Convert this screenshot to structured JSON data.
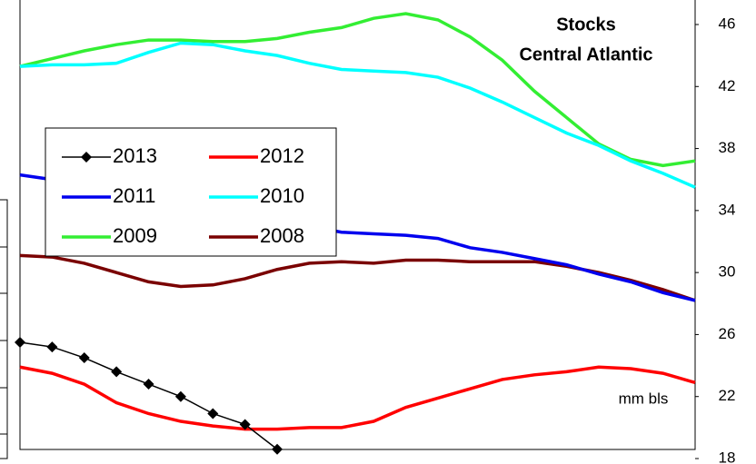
{
  "chart_data": {
    "type": "line",
    "title": "Stocks",
    "subtitle": "Central Atlantic",
    "annotation": "mm bls",
    "categories": [
      null,
      null,
      null,
      null,
      null,
      null,
      null,
      null,
      null,
      null,
      null,
      null,
      null,
      null,
      null,
      null,
      null,
      null,
      null,
      null,
      null,
      null
    ],
    "series": [
      {
        "name": "2013",
        "color": "#000000",
        "marker": "diamond",
        "values": [
          25.5,
          25.2,
          24.5,
          23.6,
          22.8,
          22.0,
          20.9,
          20.2,
          18.6,
          null,
          null,
          null,
          null,
          null,
          null,
          null,
          null,
          null,
          null,
          null,
          null,
          null
        ]
      },
      {
        "name": "2012",
        "color": "#ff0000",
        "values": [
          23.9,
          23.5,
          22.8,
          21.6,
          20.9,
          20.4,
          20.1,
          19.9,
          19.9,
          20.0,
          20.0,
          20.4,
          21.3,
          21.9,
          22.5,
          23.1,
          23.4,
          23.6,
          23.9,
          23.8,
          23.5,
          22.9
        ]
      },
      {
        "name": "2011",
        "color": "#0000ee",
        "values": [
          36.3,
          36.0,
          35.6,
          35.2,
          34.9,
          34.5,
          34.1,
          33.8,
          33.4,
          33.0,
          32.6,
          32.5,
          32.4,
          32.2,
          31.6,
          31.3,
          30.9,
          30.5,
          29.9,
          29.4,
          28.7,
          28.2
        ]
      },
      {
        "name": "2010",
        "color": "#00ffff",
        "values": [
          43.3,
          43.4,
          43.4,
          43.5,
          44.2,
          44.8,
          44.7,
          44.3,
          44.0,
          43.5,
          43.1,
          43.0,
          42.9,
          42.6,
          41.9,
          41.0,
          40.0,
          39.0,
          38.2,
          37.2,
          36.4,
          35.5
        ]
      },
      {
        "name": "2009",
        "color": "#33ee33",
        "values": [
          43.3,
          43.8,
          44.3,
          44.7,
          45.0,
          45.0,
          44.9,
          44.9,
          45.1,
          45.5,
          45.8,
          46.4,
          46.7,
          46.3,
          45.2,
          43.7,
          41.7,
          40.0,
          38.3,
          37.3,
          36.9,
          37.2
        ]
      },
      {
        "name": "2008",
        "color": "#7a0000",
        "values": [
          31.1,
          31.0,
          30.6,
          30.0,
          29.4,
          29.1,
          29.2,
          29.6,
          30.2,
          30.6,
          30.7,
          30.6,
          30.8,
          30.8,
          30.7,
          30.7,
          30.7,
          30.4,
          30.0,
          29.5,
          28.9,
          28.2
        ]
      }
    ],
    "ylim": [
      18,
      46
    ],
    "yticks": [
      18,
      22,
      26,
      30,
      34,
      38,
      42,
      46
    ],
    "y_axis_side": "right",
    "grid": false
  }
}
